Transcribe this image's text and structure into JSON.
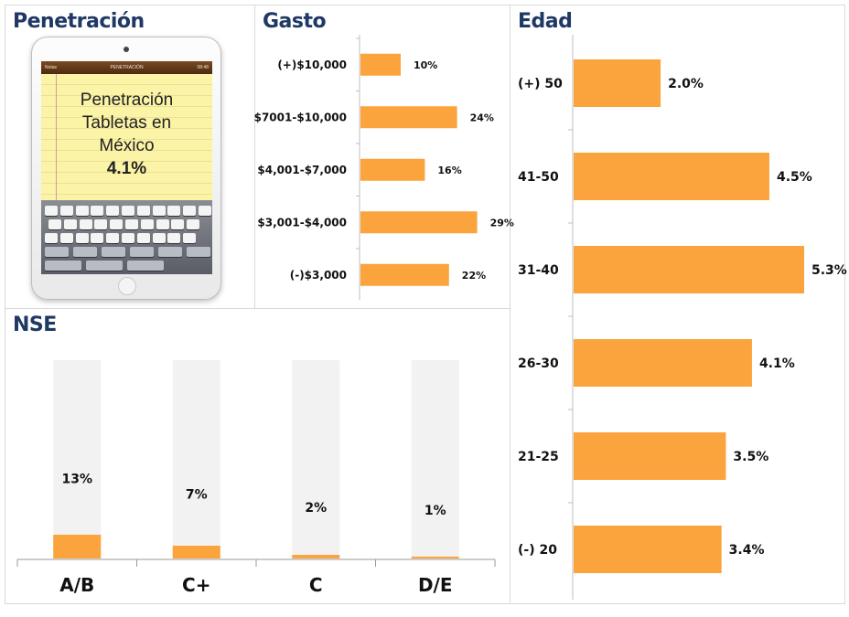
{
  "penetracion": {
    "title": "Penetración",
    "device": {
      "status_time": "08:48",
      "nav_title": "PENETRACIÓN",
      "nav_left": "Notas",
      "note_lines": [
        "Penetración",
        "Tabletas en",
        "México"
      ],
      "note_value": "4.1%"
    }
  },
  "gasto": {
    "title": "Gasto"
  },
  "edad": {
    "title": "Edad"
  },
  "nse": {
    "title": "NSE"
  },
  "colors": {
    "bar": "#fba33c",
    "track": "#f2f2f2",
    "title": "#1f3864"
  },
  "chart_data": [
    {
      "id": "gasto",
      "type": "bar",
      "orientation": "horizontal",
      "categories": [
        "(+)$10,000",
        "$7001-$10,000",
        "$4,001-$7,000",
        "$3,001-$4,000",
        "(-)$3,000"
      ],
      "values": [
        10,
        24,
        16,
        29,
        22
      ],
      "labels": [
        "10%",
        "24%",
        "16%",
        "29%",
        "22%"
      ],
      "xlim": [
        0,
        100
      ]
    },
    {
      "id": "edad",
      "type": "bar",
      "orientation": "horizontal",
      "categories": [
        "(+) 50",
        "41-50",
        "31-40",
        "26-30",
        "21-25",
        "(-) 20"
      ],
      "values": [
        2.0,
        4.5,
        5.3,
        4.1,
        3.5,
        3.4
      ],
      "labels": [
        "2.0%",
        "4.5%",
        "5.3%",
        "4.1%",
        "3.5%",
        "3.4%"
      ],
      "xlim": [
        0,
        6
      ]
    },
    {
      "id": "nse",
      "type": "bar",
      "orientation": "vertical",
      "categories": [
        "A/B",
        "C+",
        "C",
        "D/E"
      ],
      "values": [
        13,
        7,
        2,
        1
      ],
      "labels": [
        "13%",
        "7%",
        "2%",
        "1%"
      ],
      "ylim": [
        0,
        100
      ]
    }
  ]
}
